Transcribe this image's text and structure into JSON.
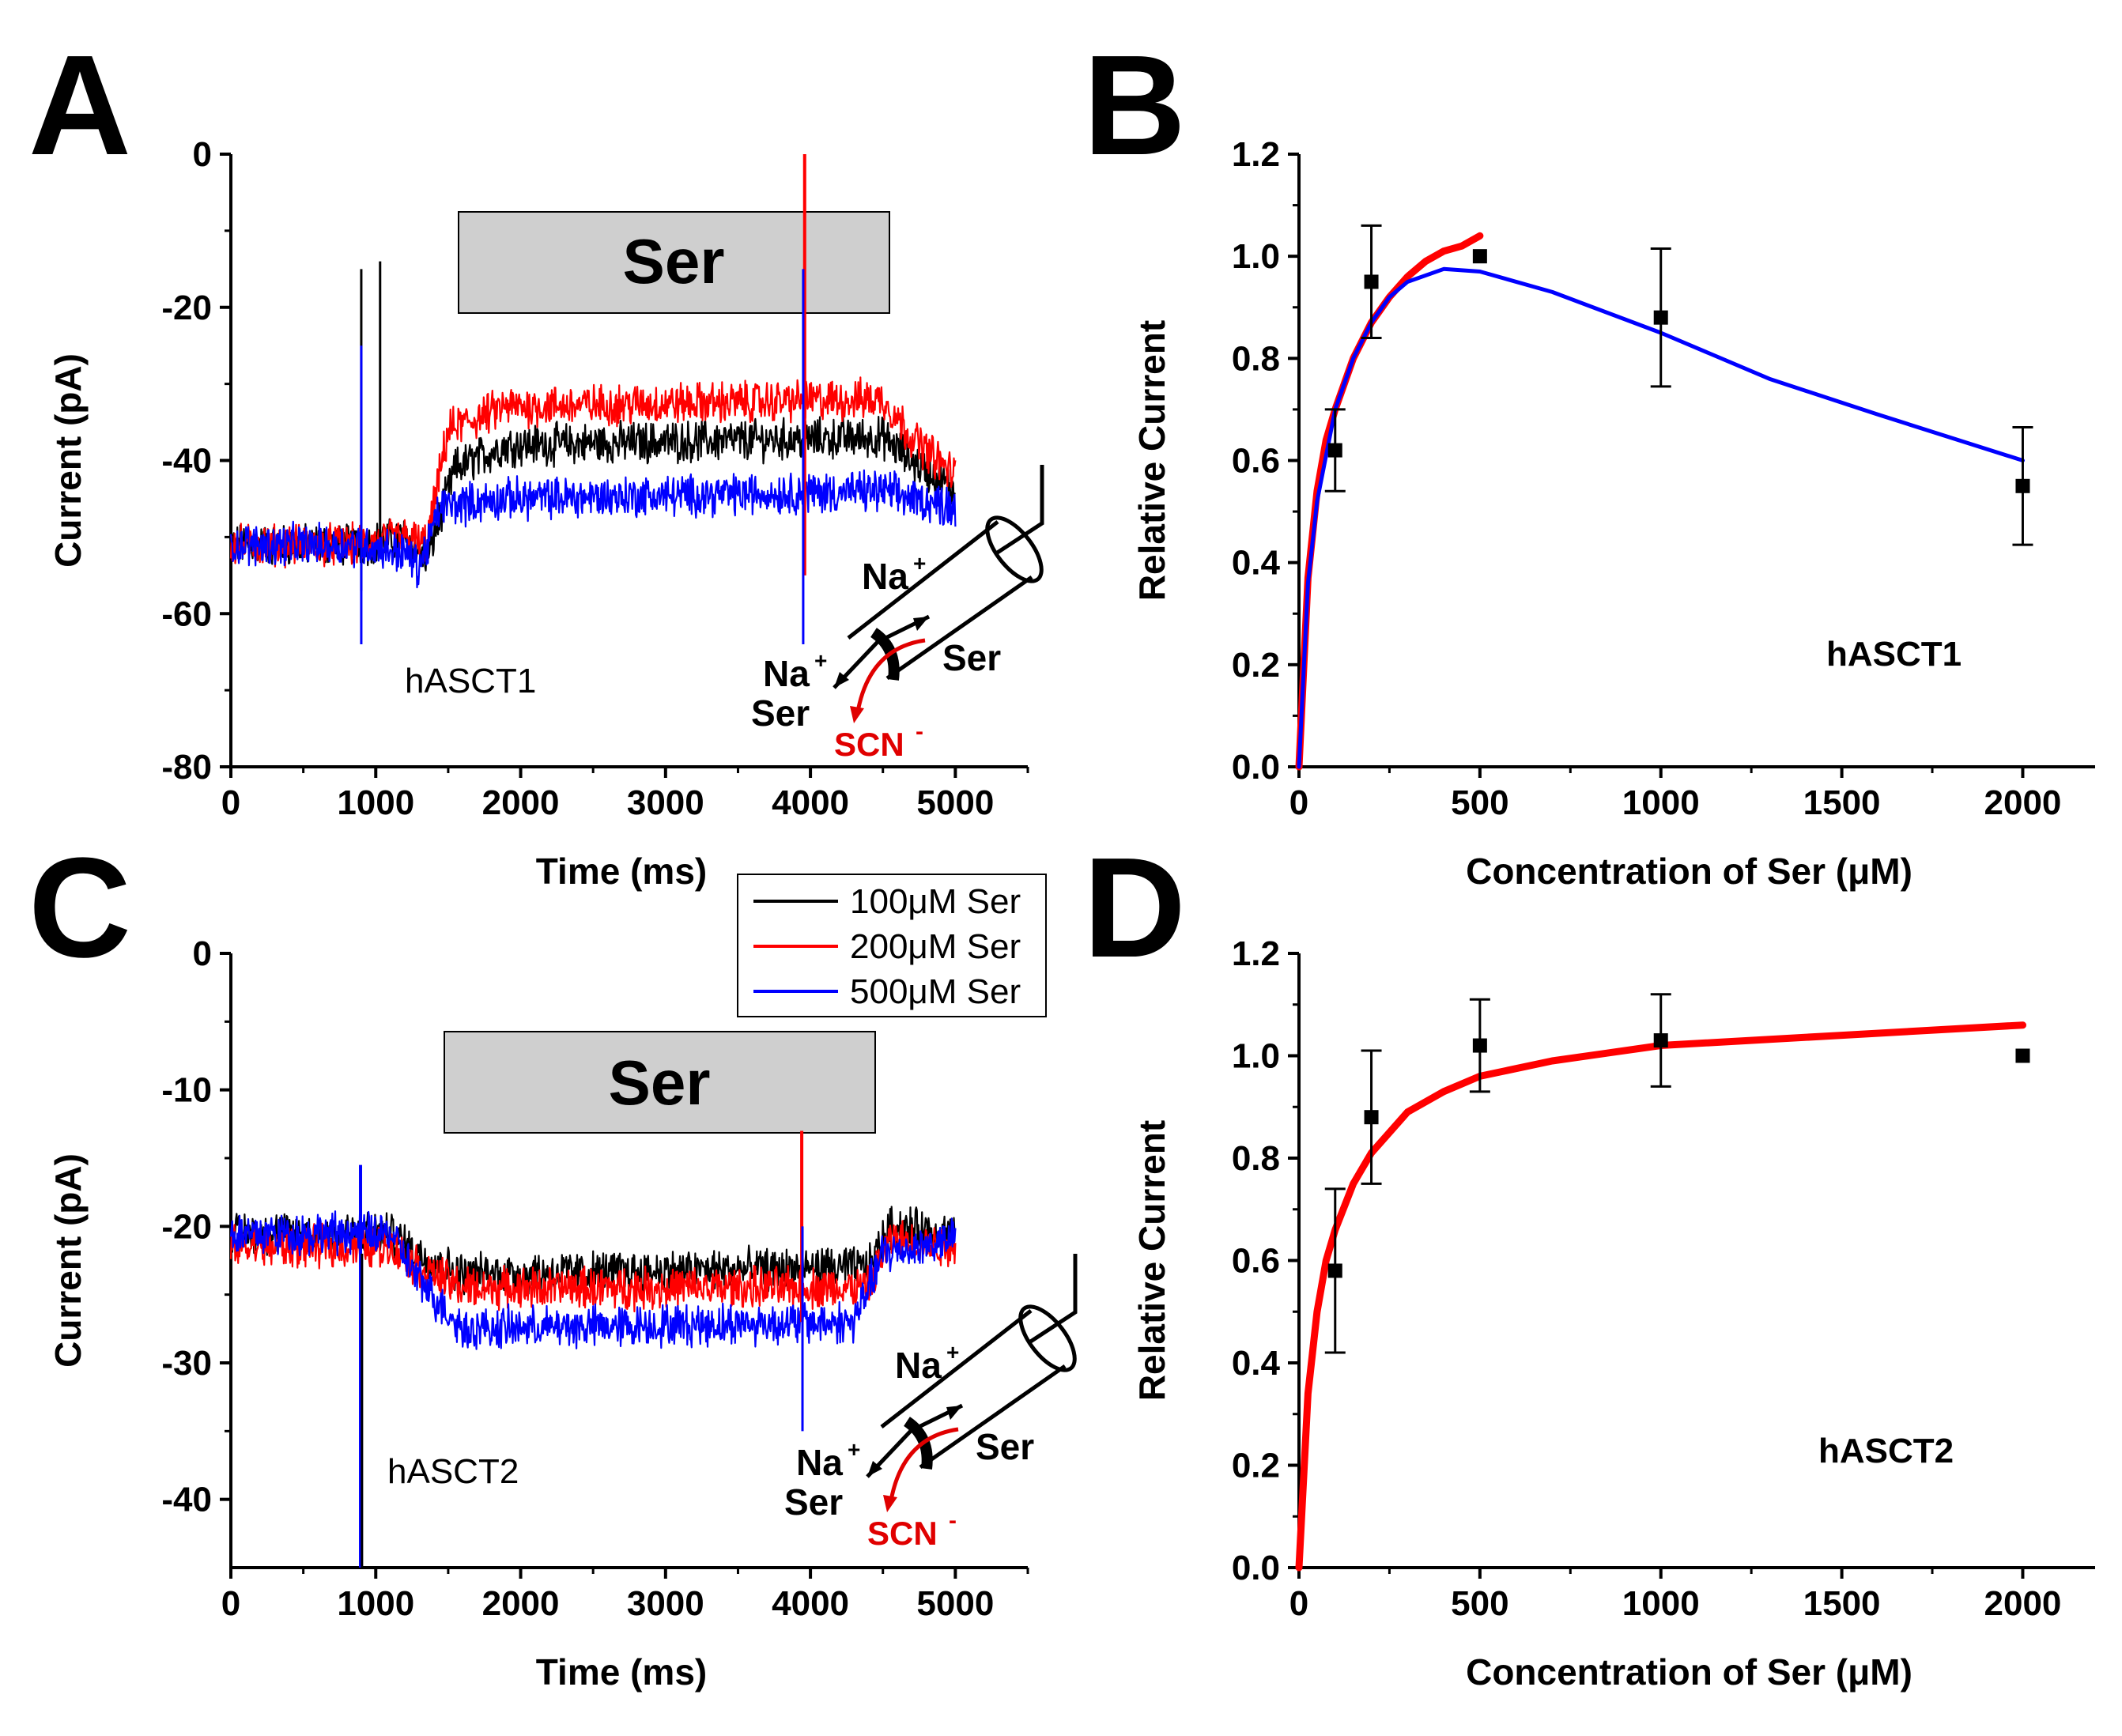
{
  "colors": {
    "black": "#000000",
    "red": "#ff0000",
    "blue": "#0000ff",
    "box_fill": "#cfcfcf"
  },
  "panels": {
    "A": {
      "letter": "A"
    },
    "B": {
      "letter": "B"
    },
    "C": {
      "letter": "C"
    },
    "D": {
      "letter": "D"
    }
  },
  "legend": {
    "entries": [
      {
        "label": "100μM Ser",
        "color": "#000000"
      },
      {
        "label": "200μM Ser",
        "color": "#ff0000"
      },
      {
        "label": "500μM Ser",
        "color": "#0000ff"
      }
    ]
  },
  "inset": {
    "na_top": "Na",
    "ser_right": "Ser",
    "na_left": "Na",
    "ser_left": "Ser",
    "scn": "SCN",
    "plus": "+",
    "minus": "-"
  },
  "chart_data": [
    {
      "panel": "A",
      "type": "line",
      "xlabel": "Time (ms)",
      "ylabel": "Current (pA)",
      "xlim": [
        0,
        5500
      ],
      "ylim": [
        -80,
        0
      ],
      "xticks": [
        0,
        1000,
        2000,
        3000,
        4000,
        5000
      ],
      "yticks": [
        0,
        -20,
        -40,
        -60,
        -80
      ],
      "annotation": "hASCT1",
      "stimulus": {
        "label": "Ser",
        "start": 1570,
        "end": 4560
      },
      "series": [
        {
          "name": "100μM Ser",
          "color": "#000000",
          "x": [
            0,
            900,
            1200,
            1350,
            1550,
            1900,
            4500,
            4700,
            5000
          ],
          "y": [
            -51,
            -51,
            -50,
            -53,
            -41,
            -38,
            -37,
            -40,
            -44
          ]
        },
        {
          "name": "200μM Ser",
          "color": "#ff0000",
          "x": [
            0,
            900,
            1200,
            1350,
            1500,
            1900,
            4500,
            4700,
            5000
          ],
          "y": [
            -51,
            -51,
            -50,
            -51,
            -36,
            -33,
            -32,
            -37,
            -42
          ]
        },
        {
          "name": "500μM Ser",
          "color": "#0000ff",
          "x": [
            0,
            900,
            1200,
            1300,
            1450,
            1900,
            4500,
            4700,
            5000
          ],
          "y": [
            -51,
            -51,
            -52,
            -54,
            -46,
            -45,
            -44,
            -45,
            -46
          ]
        }
      ]
    },
    {
      "panel": "B",
      "type": "scatter",
      "xlabel": "Concentration of Ser (μM)",
      "ylabel": "Relative Current",
      "xlim": [
        0,
        2200
      ],
      "ylim": [
        0,
        1.2
      ],
      "xticks": [
        0,
        500,
        1000,
        1500,
        2000
      ],
      "yticks": [
        0.0,
        0.2,
        0.4,
        0.6,
        0.8,
        1.0,
        1.2
      ],
      "annotation": "hASCT1",
      "points": {
        "x": [
          100,
          200,
          500,
          1000,
          2000
        ],
        "y": [
          0.62,
          0.95,
          1.0,
          0.88,
          0.55
        ],
        "err": [
          0.08,
          0.11,
          0.0,
          0.135,
          0.115
        ]
      },
      "fits": [
        {
          "color": "#ff0000",
          "x": [
            0,
            25,
            50,
            75,
            100,
            150,
            200,
            250,
            300,
            350,
            400,
            450,
            500
          ],
          "y": [
            0.0,
            0.37,
            0.54,
            0.64,
            0.7,
            0.8,
            0.87,
            0.92,
            0.96,
            0.99,
            1.01,
            1.02,
            1.04
          ]
        },
        {
          "color": "#0000ff",
          "x": [
            0,
            25,
            50,
            100,
            150,
            200,
            250,
            300,
            400,
            500,
            700,
            1000,
            1300,
            1600,
            2000
          ],
          "y": [
            0.0,
            0.36,
            0.52,
            0.7,
            0.8,
            0.87,
            0.92,
            0.95,
            0.975,
            0.97,
            0.93,
            0.85,
            0.76,
            0.69,
            0.6
          ]
        }
      ]
    },
    {
      "panel": "C",
      "type": "line",
      "xlabel": "Time (ms)",
      "ylabel": "Current (pA)",
      "xlim": [
        0,
        5500
      ],
      "ylim": [
        -45,
        0
      ],
      "xticks": [
        0,
        1000,
        2000,
        3000,
        4000,
        5000
      ],
      "yticks": [
        0,
        -10,
        -20,
        -30,
        -40
      ],
      "annotation": "hASCT2",
      "stimulus": {
        "label": "Ser",
        "start": 1470,
        "end": 4460
      },
      "series": [
        {
          "name": "100μM Ser",
          "color": "#000000",
          "x": [
            0,
            1100,
            1300,
            1600,
            4400,
            4550,
            5000
          ],
          "y": [
            -20.5,
            -20.5,
            -22,
            -23.5,
            -23,
            -20,
            -20.5
          ]
        },
        {
          "name": "200μM Ser",
          "color": "#ff0000",
          "x": [
            0,
            1100,
            1300,
            1600,
            4400,
            4550,
            5000
          ],
          "y": [
            -21.5,
            -21.5,
            -23,
            -24.5,
            -24.5,
            -21,
            -21.5
          ]
        },
        {
          "name": "500μM Ser",
          "color": "#0000ff",
          "x": [
            0,
            1100,
            1300,
            1600,
            4300,
            4500,
            5000
          ],
          "y": [
            -20.5,
            -20.5,
            -24,
            -27.5,
            -27,
            -22,
            -21
          ]
        }
      ]
    },
    {
      "panel": "D",
      "type": "scatter",
      "xlabel": "Concentration of Ser (μM)",
      "ylabel": "Relative Current",
      "xlim": [
        0,
        2200
      ],
      "ylim": [
        0,
        1.2
      ],
      "xticks": [
        0,
        500,
        1000,
        1500,
        2000
      ],
      "yticks": [
        0.0,
        0.2,
        0.4,
        0.6,
        0.8,
        1.0,
        1.2
      ],
      "annotation": "hASCT2",
      "points": {
        "x": [
          100,
          200,
          500,
          1000,
          2000
        ],
        "y": [
          0.58,
          0.88,
          1.02,
          1.03,
          1.0
        ],
        "err": [
          0.16,
          0.13,
          0.09,
          0.09,
          0.0
        ]
      },
      "fits": [
        {
          "color": "#ff0000",
          "x": [
            0,
            25,
            50,
            75,
            100,
            150,
            200,
            300,
            400,
            500,
            700,
            1000,
            1500,
            2000
          ],
          "y": [
            0.0,
            0.34,
            0.5,
            0.6,
            0.66,
            0.75,
            0.81,
            0.89,
            0.93,
            0.96,
            0.99,
            1.02,
            1.04,
            1.06
          ]
        }
      ]
    }
  ]
}
